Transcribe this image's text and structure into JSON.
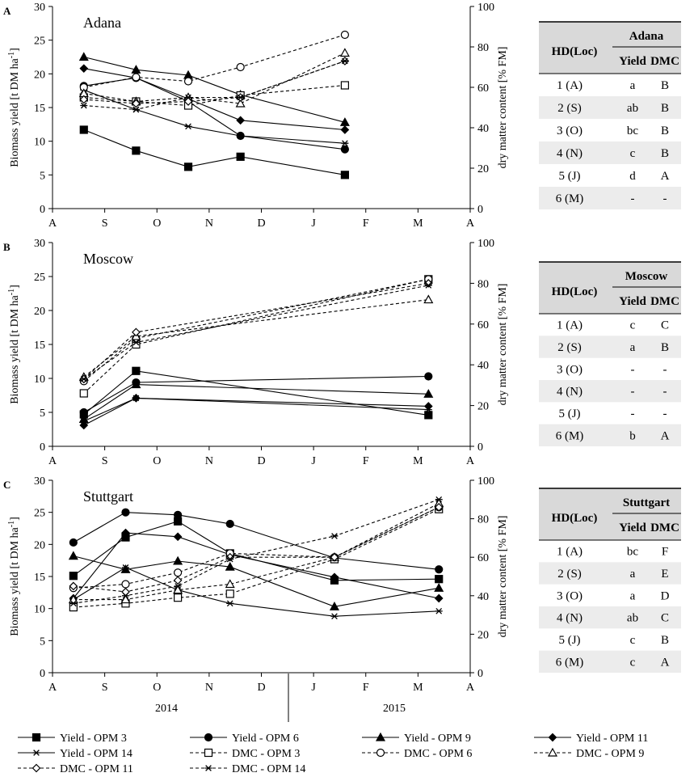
{
  "figure": {
    "y_label_left": "Biomass yield [t DM ha",
    "y_label_left_sup": "-1",
    "y_label_left_end": "]",
    "y_label_right": "dry matter content [% FM]",
    "x_ticks": [
      "A",
      "S",
      "O",
      "N",
      "D",
      "J",
      "F",
      "M",
      "A"
    ],
    "year_2014": "2014",
    "year_2015": "2015",
    "y_left_ticks": [
      0,
      5,
      10,
      15,
      20,
      25,
      30
    ],
    "y_right_ticks": [
      0,
      20,
      40,
      60,
      80,
      100
    ]
  },
  "legend": [
    {
      "label": "Yield - OPM 3",
      "marker": "square-filled",
      "dash": false
    },
    {
      "label": "Yield - OPM 6",
      "marker": "circle-filled",
      "dash": false
    },
    {
      "label": "Yield - OPM 9",
      "marker": "triangle-filled",
      "dash": false
    },
    {
      "label": "Yield - OPM 11",
      "marker": "diamond-filled",
      "dash": false
    },
    {
      "label": "Yield - OPM 14",
      "marker": "star",
      "dash": false
    },
    {
      "label": "DMC - OPM 3",
      "marker": "square-open",
      "dash": true
    },
    {
      "label": "DMC - OPM 6",
      "marker": "circle-open",
      "dash": true
    },
    {
      "label": "DMC - OPM 9",
      "marker": "triangle-open",
      "dash": true
    },
    {
      "label": "DMC - OPM 11",
      "marker": "diamond-open",
      "dash": true
    },
    {
      "label": "DMC - OPM 14",
      "marker": "star",
      "dash": true
    }
  ],
  "chart_data": [
    {
      "panel": "A",
      "type": "line",
      "title": "Adana",
      "xlabel": "",
      "ylabel": "Biomass yield [t DM ha-1]",
      "y2label": "dry matter content [% FM]",
      "x_unit": "months since 1 Aug 2014",
      "xlim": [
        0,
        8
      ],
      "ylim": [
        0,
        30
      ],
      "y2lim": [
        0,
        100
      ],
      "series": [
        {
          "name": "Yield - OPM 3",
          "axis": "left",
          "x": [
            0.6,
            1.6,
            2.6,
            3.6,
            5.6
          ],
          "y": [
            11.7,
            8.6,
            6.2,
            7.7,
            5.0
          ]
        },
        {
          "name": "Yield - OPM 6",
          "axis": "left",
          "x": [
            0.6,
            1.6,
            2.6,
            3.6,
            5.6
          ],
          "y": [
            18.2,
            19.4,
            15.9,
            10.8,
            8.8
          ]
        },
        {
          "name": "Yield - OPM 9",
          "axis": "left",
          "x": [
            0.6,
            1.6,
            2.6,
            3.6,
            5.6
          ],
          "y": [
            22.5,
            20.6,
            19.8,
            16.9,
            12.8
          ]
        },
        {
          "name": "Yield - OPM 11",
          "axis": "left",
          "x": [
            0.6,
            1.6,
            2.6,
            3.6,
            5.6
          ],
          "y": [
            20.8,
            19.4,
            16.3,
            13.1,
            11.7
          ]
        },
        {
          "name": "Yield - OPM 14",
          "axis": "left",
          "x": [
            0.6,
            1.6,
            2.6,
            3.6,
            5.6
          ],
          "y": [
            17.6,
            14.7,
            12.2,
            10.8,
            9.7
          ]
        },
        {
          "name": "DMC - OPM 3",
          "axis": "right",
          "x": [
            0.6,
            1.6,
            2.6,
            3.6,
            5.6
          ],
          "y": [
            55,
            53,
            51,
            56,
            61
          ]
        },
        {
          "name": "DMC - OPM 6",
          "axis": "right",
          "x": [
            0.6,
            1.6,
            2.6,
            3.6,
            5.6
          ],
          "y": [
            60,
            65,
            63,
            70,
            86
          ]
        },
        {
          "name": "DMC - OPM 9",
          "axis": "right",
          "x": [
            0.6,
            1.6,
            2.6,
            3.6,
            5.6
          ],
          "y": [
            57,
            53,
            55,
            52,
            77
          ]
        },
        {
          "name": "DMC - OPM 11",
          "axis": "right",
          "x": [
            0.6,
            1.6,
            2.6,
            3.6,
            5.6
          ],
          "y": [
            54,
            52,
            53,
            55,
            73
          ]
        },
        {
          "name": "DMC - OPM 14",
          "axis": "right",
          "x": [
            0.6,
            1.6,
            2.6,
            3.6,
            5.6
          ],
          "y": [
            51,
            49,
            55,
            55,
            73
          ]
        }
      ],
      "table": {
        "header_loc": "HD(Loc)",
        "header_site": "Adana",
        "col1": "Yield",
        "col2": "DMC",
        "rows": [
          [
            "1 (A)",
            "a",
            "B"
          ],
          [
            "2 (S)",
            "ab",
            "B"
          ],
          [
            "3 (O)",
            "bc",
            "B"
          ],
          [
            "4 (N)",
            "c",
            "B"
          ],
          [
            "5 (J)",
            "d",
            "A"
          ],
          [
            "6 (M)",
            "-",
            "-"
          ]
        ]
      }
    },
    {
      "panel": "B",
      "type": "line",
      "title": "Moscow",
      "xlabel": "",
      "ylabel": "Biomass yield [t DM ha-1]",
      "y2label": "dry matter content [% FM]",
      "x_unit": "months since 1 Aug 2014",
      "xlim": [
        0,
        8
      ],
      "ylim": [
        0,
        30
      ],
      "y2lim": [
        0,
        100
      ],
      "series": [
        {
          "name": "Yield - OPM 3",
          "axis": "left",
          "x": [
            0.6,
            1.6,
            7.2
          ],
          "y": [
            4.7,
            11.1,
            4.6
          ]
        },
        {
          "name": "Yield - OPM 6",
          "axis": "left",
          "x": [
            0.6,
            1.6,
            7.2
          ],
          "y": [
            5.0,
            9.4,
            10.3
          ]
        },
        {
          "name": "Yield - OPM 9",
          "axis": "left",
          "x": [
            0.6,
            1.6,
            7.2
          ],
          "y": [
            4.0,
            9.1,
            7.7
          ]
        },
        {
          "name": "Yield - OPM 11",
          "axis": "left",
          "x": [
            0.6,
            1.6,
            7.2
          ],
          "y": [
            3.1,
            7.1,
            5.9
          ]
        },
        {
          "name": "Yield - OPM 14",
          "axis": "left",
          "x": [
            0.6,
            1.6,
            7.2
          ],
          "y": [
            3.7,
            7.1,
            5.4
          ]
        },
        {
          "name": "DMC - OPM 3",
          "axis": "right",
          "x": [
            0.6,
            1.6,
            7.2
          ],
          "y": [
            26,
            50,
            82
          ]
        },
        {
          "name": "DMC - OPM 6",
          "axis": "right",
          "x": [
            0.6,
            1.6,
            7.2
          ],
          "y": [
            32,
            53,
            82
          ]
        },
        {
          "name": "DMC - OPM 9",
          "axis": "right",
          "x": [
            0.6,
            1.6,
            7.2
          ],
          "y": [
            34,
            54,
            72
          ]
        },
        {
          "name": "DMC - OPM 11",
          "axis": "right",
          "x": [
            0.6,
            1.6,
            7.2
          ],
          "y": [
            33,
            56,
            80
          ]
        },
        {
          "name": "DMC - OPM 14",
          "axis": "right",
          "x": [
            0.6,
            1.6,
            7.2
          ],
          "y": [
            33,
            51,
            79
          ]
        }
      ],
      "table": {
        "header_loc": "HD(Loc)",
        "header_site": "Moscow",
        "col1": "Yield",
        "col2": "DMC",
        "rows": [
          [
            "1 (A)",
            "c",
            "C"
          ],
          [
            "2 (S)",
            "a",
            "B"
          ],
          [
            "3 (O)",
            "-",
            "-"
          ],
          [
            "4 (N)",
            "-",
            "-"
          ],
          [
            "5 (J)",
            "-",
            "-"
          ],
          [
            "6 (M)",
            "b",
            "A"
          ]
        ]
      }
    },
    {
      "panel": "C",
      "type": "line",
      "title": "Stuttgart",
      "xlabel": "",
      "ylabel": "Biomass yield [t DM ha-1]",
      "y2label": "dry matter content [% FM]",
      "x_unit": "months since 1 Aug 2014",
      "xlim": [
        0,
        8
      ],
      "ylim": [
        0,
        30
      ],
      "y2lim": [
        0,
        100
      ],
      "series": [
        {
          "name": "Yield - OPM 3",
          "axis": "left",
          "x": [
            0.4,
            1.4,
            2.4,
            3.4,
            5.4,
            7.4
          ],
          "y": [
            15.1,
            21.1,
            23.6,
            18.6,
            14.4,
            14.6
          ]
        },
        {
          "name": "Yield - OPM 6",
          "axis": "left",
          "x": [
            0.4,
            1.4,
            2.4,
            3.4,
            5.4,
            7.4
          ],
          "y": [
            20.3,
            25.0,
            24.6,
            23.2,
            17.9,
            16.1
          ]
        },
        {
          "name": "Yield - OPM 9",
          "axis": "left",
          "x": [
            0.4,
            1.4,
            2.4,
            3.4,
            5.4,
            7.4
          ],
          "y": [
            18.2,
            16.1,
            17.4,
            16.5,
            10.3,
            13.2
          ]
        },
        {
          "name": "Yield - OPM 11",
          "axis": "left",
          "x": [
            0.4,
            1.4,
            2.4,
            3.4,
            5.4,
            7.4
          ],
          "y": [
            11.6,
            21.8,
            21.2,
            18.4,
            14.9,
            11.6
          ]
        },
        {
          "name": "Yield - OPM 14",
          "axis": "left",
          "x": [
            0.4,
            1.4,
            2.4,
            3.4,
            5.4,
            7.4
          ],
          "y": [
            11.4,
            16.4,
            12.9,
            10.8,
            8.8,
            9.6
          ]
        },
        {
          "name": "DMC - OPM 3",
          "axis": "right",
          "x": [
            0.4,
            1.4,
            2.4,
            3.4,
            5.4,
            7.4
          ],
          "y": [
            34,
            36,
            39,
            41,
            59,
            85
          ]
        },
        {
          "name": "DMC - OPM 6",
          "axis": "right",
          "x": [
            0.4,
            1.4,
            2.4,
            3.4,
            5.4,
            7.4
          ],
          "y": [
            44,
            46,
            52,
            62,
            60,
            86
          ]
        },
        {
          "name": "DMC - OPM 9",
          "axis": "right",
          "x": [
            0.4,
            1.4,
            2.4,
            3.4,
            5.4,
            7.4
          ],
          "y": [
            38,
            38,
            43,
            46,
            60,
            88
          ]
        },
        {
          "name": "DMC - OPM 11",
          "axis": "right",
          "x": [
            0.4,
            1.4,
            2.4,
            3.4,
            5.4,
            7.4
          ],
          "y": [
            45,
            42,
            48,
            60,
            60,
            86
          ]
        },
        {
          "name": "DMC - OPM 14",
          "axis": "right",
          "x": [
            0.4,
            1.4,
            2.4,
            3.4,
            5.4,
            7.4
          ],
          "y": [
            36,
            40,
            45,
            59,
            71,
            90
          ]
        }
      ],
      "table": {
        "header_loc": "HD(Loc)",
        "header_site": "Stuttgart",
        "col1": "Yield",
        "col2": "DMC",
        "rows": [
          [
            "1 (A)",
            "bc",
            "F"
          ],
          [
            "2 (S)",
            "a",
            "E"
          ],
          [
            "3 (O)",
            "a",
            "D"
          ],
          [
            "4 (N)",
            "ab",
            "C"
          ],
          [
            "5 (J)",
            "c",
            "B"
          ],
          [
            "6 (M)",
            "c",
            "A"
          ]
        ]
      }
    }
  ]
}
